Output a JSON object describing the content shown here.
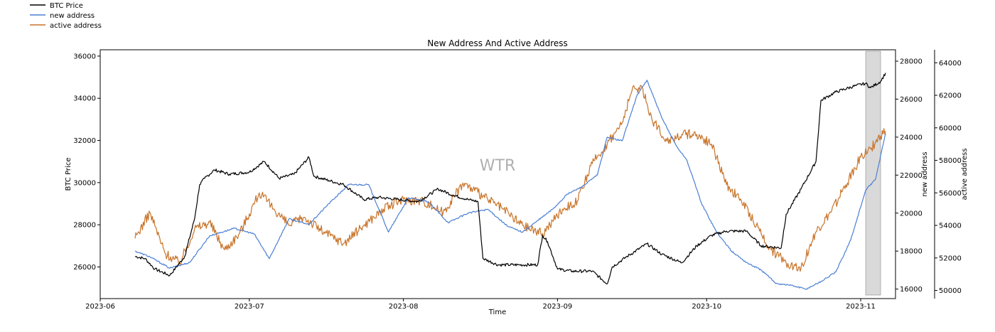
{
  "chart_data": {
    "type": "line",
    "title": "New Address And Active Address",
    "xlabel": "Time",
    "watermark": "WTR",
    "legend": {
      "placement": "top-left",
      "entries": [
        "BTC Price",
        "new address",
        "active address"
      ]
    },
    "colors": {
      "btc": "#000000",
      "new": "#4a7fd4",
      "active": "#c8742a",
      "highlight": "#d9d9d9"
    },
    "x_domain": [
      "2023-06-01",
      "2023-11-08"
    ],
    "x_ticks": [
      "2023-06",
      "2023-07",
      "2023-08",
      "2023-09",
      "2023-10",
      "2023-11"
    ],
    "x_tick_dates": [
      "2023-06-01",
      "2023-07-01",
      "2023-08-01",
      "2023-09-01",
      "2023-10-01",
      "2023-11-01"
    ],
    "highlight_range": [
      "2023-11-02",
      "2023-11-05"
    ],
    "axes": {
      "left": {
        "label": "BTC Price",
        "ylim": [
          24500,
          36300
        ],
        "ticks": [
          26000,
          28000,
          30000,
          32000,
          34000,
          36000
        ]
      },
      "right1": {
        "label": "new address",
        "ylim": [
          15500,
          28600
        ],
        "ticks": [
          16000,
          18000,
          20000,
          22000,
          24000,
          26000,
          28000
        ]
      },
      "right2": {
        "label": "active address",
        "ylim": [
          49500,
          64800
        ],
        "ticks": [
          50000,
          52000,
          54000,
          56000,
          58000,
          60000,
          62000,
          64000
        ]
      }
    },
    "series": [
      {
        "name": "BTC Price",
        "axis": "left",
        "dates": [
          "2023-06-08",
          "2023-06-10",
          "2023-06-12",
          "2023-06-15",
          "2023-06-18",
          "2023-06-20",
          "2023-06-21",
          "2023-06-22",
          "2023-06-24",
          "2023-06-27",
          "2023-07-01",
          "2023-07-04",
          "2023-07-07",
          "2023-07-10",
          "2023-07-13",
          "2023-07-14",
          "2023-07-17",
          "2023-07-20",
          "2023-07-24",
          "2023-07-27",
          "2023-07-31",
          "2023-08-04",
          "2023-08-08",
          "2023-08-11",
          "2023-08-14",
          "2023-08-16",
          "2023-08-17",
          "2023-08-20",
          "2023-08-24",
          "2023-08-28",
          "2023-08-29",
          "2023-08-30",
          "2023-09-01",
          "2023-09-04",
          "2023-09-08",
          "2023-09-11",
          "2023-09-12",
          "2023-09-15",
          "2023-09-19",
          "2023-09-22",
          "2023-09-26",
          "2023-09-29",
          "2023-10-02",
          "2023-10-05",
          "2023-10-09",
          "2023-10-12",
          "2023-10-16",
          "2023-10-17",
          "2023-10-20",
          "2023-10-23",
          "2023-10-24",
          "2023-10-27",
          "2023-10-31",
          "2023-11-02",
          "2023-11-03",
          "2023-11-05",
          "2023-11-06"
        ],
        "values": [
          26500,
          26400,
          25900,
          25600,
          26500,
          28300,
          29900,
          30200,
          30600,
          30400,
          30500,
          31000,
          30200,
          30400,
          31200,
          30300,
          30100,
          29900,
          29200,
          29300,
          29200,
          29100,
          29700,
          29400,
          29200,
          29100,
          26400,
          26100,
          26100,
          26100,
          27500,
          27200,
          25900,
          25800,
          25800,
          25200,
          26000,
          26500,
          27100,
          26600,
          26200,
          27000,
          27500,
          27700,
          27700,
          27000,
          26900,
          28500,
          29700,
          31000,
          33900,
          34300,
          34600,
          34700,
          34500,
          34800,
          35200
        ]
      },
      {
        "name": "new address",
        "axis": "right1",
        "dates": [
          "2023-06-08",
          "2023-06-11",
          "2023-06-15",
          "2023-06-19",
          "2023-06-23",
          "2023-06-28",
          "2023-07-02",
          "2023-07-05",
          "2023-07-09",
          "2023-07-13",
          "2023-07-17",
          "2023-07-21",
          "2023-07-25",
          "2023-07-29",
          "2023-08-02",
          "2023-08-06",
          "2023-08-10",
          "2023-08-14",
          "2023-08-18",
          "2023-08-22",
          "2023-08-25",
          "2023-08-28",
          "2023-08-31",
          "2023-09-03",
          "2023-09-06",
          "2023-09-09",
          "2023-09-11",
          "2023-09-14",
          "2023-09-17",
          "2023-09-19",
          "2023-09-22",
          "2023-09-25",
          "2023-09-27",
          "2023-09-30",
          "2023-10-03",
          "2023-10-06",
          "2023-10-09",
          "2023-10-12",
          "2023-10-15",
          "2023-10-18",
          "2023-10-21",
          "2023-10-24",
          "2023-10-27",
          "2023-10-30",
          "2023-11-02",
          "2023-11-04",
          "2023-11-06"
        ],
        "values": [
          18000,
          17700,
          17100,
          17400,
          18800,
          19200,
          18900,
          17600,
          19700,
          19400,
          20500,
          21500,
          21500,
          19000,
          20800,
          20600,
          19500,
          20000,
          20200,
          19300,
          19000,
          19600,
          20200,
          21000,
          21400,
          22000,
          24000,
          23800,
          26200,
          27000,
          25000,
          23500,
          22800,
          20500,
          19000,
          18000,
          17400,
          17000,
          16300,
          16200,
          16000,
          16400,
          16900,
          18600,
          21200,
          21800,
          24200
        ]
      },
      {
        "name": "active address",
        "axis": "right2",
        "dates": [
          "2023-06-08",
          "2023-06-11",
          "2023-06-14",
          "2023-06-17",
          "2023-06-20",
          "2023-06-23",
          "2023-06-26",
          "2023-06-29",
          "2023-07-03",
          "2023-07-06",
          "2023-07-09",
          "2023-07-12",
          "2023-07-16",
          "2023-07-20",
          "2023-07-24",
          "2023-07-28",
          "2023-08-01",
          "2023-08-05",
          "2023-08-09",
          "2023-08-13",
          "2023-08-17",
          "2023-08-21",
          "2023-08-25",
          "2023-08-29",
          "2023-09-02",
          "2023-09-05",
          "2023-09-08",
          "2023-09-11",
          "2023-09-14",
          "2023-09-16",
          "2023-09-18",
          "2023-09-20",
          "2023-09-23",
          "2023-09-26",
          "2023-09-29",
          "2023-10-02",
          "2023-10-05",
          "2023-10-08",
          "2023-10-11",
          "2023-10-14",
          "2023-10-17",
          "2023-10-20",
          "2023-10-23",
          "2023-10-26",
          "2023-10-29",
          "2023-11-01",
          "2023-11-03",
          "2023-11-05",
          "2023-11-06"
        ],
        "values": [
          53200,
          54800,
          52300,
          51700,
          53800,
          54200,
          52500,
          53500,
          56000,
          55000,
          54000,
          54500,
          53600,
          52900,
          54000,
          55000,
          55600,
          55500,
          54800,
          56600,
          55800,
          55000,
          54000,
          53500,
          55000,
          55500,
          57800,
          59000,
          60300,
          62300,
          62500,
          60500,
          59200,
          59600,
          59600,
          59000,
          56500,
          55500,
          54000,
          52500,
          51700,
          51400,
          53600,
          54800,
          56500,
          58200,
          58700,
          59500,
          59800
        ]
      }
    ]
  }
}
